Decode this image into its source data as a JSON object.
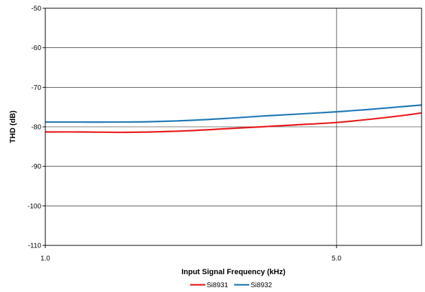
{
  "chart_data": {
    "type": "line",
    "xlabel": "Input Signal Frequency (kHz)",
    "ylabel": "THD (dB)",
    "x_scale": "log",
    "xlim": [
      1.0,
      8.0
    ],
    "ylim": [
      -110,
      -50
    ],
    "x_ticks": [
      {
        "value": 1.0,
        "label": "1.0"
      },
      {
        "value": 5.0,
        "label": "5.0"
      }
    ],
    "y_ticks": [
      {
        "value": -50,
        "label": "-50"
      },
      {
        "value": -60,
        "label": "-60"
      },
      {
        "value": -70,
        "label": "-70"
      },
      {
        "value": -80,
        "label": "-80"
      },
      {
        "value": -90,
        "label": "-90"
      },
      {
        "value": -100,
        "label": "-100"
      },
      {
        "value": -110,
        "label": "-110"
      }
    ],
    "grid": true,
    "legend_position": "bottom",
    "series": [
      {
        "name": "Si8931",
        "color": "#e8181b",
        "x": [
          1.0,
          1.2,
          1.5,
          1.8,
          2.2,
          2.7,
          3.3,
          4.0,
          5.0,
          6.0,
          7.0,
          8.0
        ],
        "y": [
          -81.3,
          -81.3,
          -81.4,
          -81.3,
          -81.0,
          -80.5,
          -80.0,
          -79.5,
          -78.9,
          -78.1,
          -77.3,
          -76.5
        ]
      },
      {
        "name": "Si8932",
        "color": "#1f77b4",
        "x": [
          1.0,
          1.2,
          1.5,
          1.8,
          2.2,
          2.7,
          3.3,
          4.0,
          5.0,
          6.0,
          7.0,
          8.0
        ],
        "y": [
          -78.8,
          -78.8,
          -78.8,
          -78.7,
          -78.4,
          -77.9,
          -77.3,
          -76.8,
          -76.2,
          -75.6,
          -75.0,
          -74.5
        ]
      }
    ]
  }
}
